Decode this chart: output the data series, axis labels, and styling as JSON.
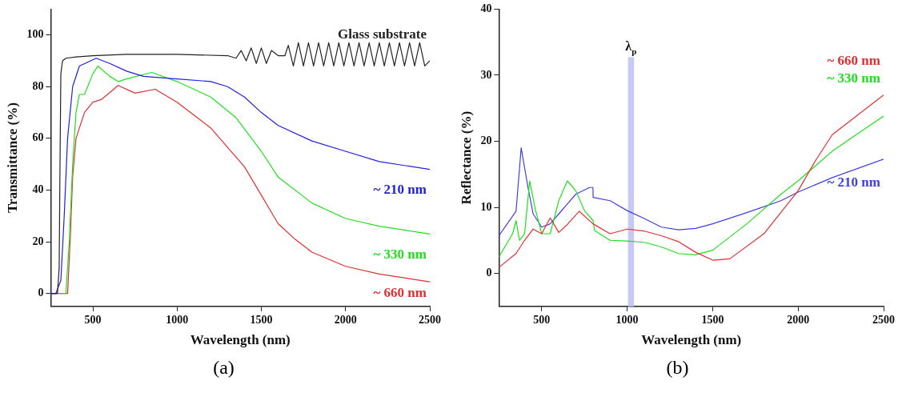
{
  "chart_data": [
    {
      "type": "line",
      "xlabel": "Wavelength (nm)",
      "ylabel": "Transmittance (%)",
      "xlim": [
        250,
        2500
      ],
      "ylim": [
        -5,
        110
      ],
      "xticks": [
        500,
        1000,
        1500,
        2000,
        2500
      ],
      "yticks": [
        0,
        20,
        40,
        60,
        80,
        100
      ],
      "grid": false,
      "legend": false,
      "marker": "none",
      "line_style": "solid",
      "annotations": [
        "(a)"
      ],
      "series": [
        {
          "name": "Glass substrate",
          "color": "#222222",
          "x": [
            250,
            290,
            300,
            305,
            310,
            320,
            340,
            400,
            500,
            700,
            1000,
            1300,
            1350,
            1380,
            1410,
            1440,
            1470,
            1500,
            1530,
            1560,
            1600,
            1640,
            1660,
            1690,
            1720,
            1750,
            1780,
            1810,
            1840,
            1870,
            1900,
            1930,
            1960,
            1990,
            2020,
            2050,
            2080,
            2110,
            2140,
            2170,
            2200,
            2230,
            2260,
            2290,
            2320,
            2350,
            2380,
            2410,
            2440,
            2470,
            2500
          ],
          "values": [
            0,
            0,
            10,
            50,
            85,
            90,
            91,
            91.5,
            92,
            92.5,
            92.5,
            92,
            91,
            94,
            90,
            95,
            89,
            95,
            89,
            94,
            92,
            92,
            96,
            88,
            97,
            88,
            97,
            88,
            97,
            88,
            97,
            88,
            97,
            88,
            97,
            88,
            97,
            88,
            97,
            88,
            97,
            88,
            97,
            88,
            97,
            88,
            97,
            88,
            97,
            88,
            90
          ]
        },
        {
          "name": "~ 210 nm",
          "color": "#2020e0",
          "x": [
            250,
            280,
            310,
            330,
            350,
            380,
            420,
            520,
            600,
            700,
            800,
            1000,
            1200,
            1300,
            1400,
            1500,
            1600,
            1800,
            2000,
            2200,
            2500
          ],
          "values": [
            0,
            0,
            5,
            30,
            60,
            80,
            88,
            91,
            89,
            86,
            84,
            83,
            82,
            80,
            76,
            70,
            65,
            59,
            55,
            51,
            48
          ]
        },
        {
          "name": "~ 330 nm",
          "color": "#20e020",
          "x": [
            250,
            340,
            360,
            380,
            400,
            420,
            450,
            500,
            530,
            600,
            650,
            700,
            850,
            1000,
            1200,
            1350,
            1500,
            1600,
            1800,
            2000,
            2200,
            2500
          ],
          "values": [
            0,
            0,
            20,
            50,
            70,
            77,
            77,
            85,
            88,
            84,
            82,
            83,
            85.5,
            82,
            76,
            68,
            55,
            45,
            35,
            29,
            26,
            23
          ]
        },
        {
          "name": "~ 660 nm",
          "color": "#e03030",
          "x": [
            250,
            350,
            365,
            380,
            400,
            450,
            500,
            550,
            650,
            750,
            870,
            1000,
            1200,
            1400,
            1500,
            1600,
            1700,
            1800,
            2000,
            2200,
            2500
          ],
          "values": [
            0,
            0,
            20,
            45,
            60,
            70,
            74,
            75,
            80.5,
            77.5,
            79,
            74,
            64,
            49,
            38,
            27,
            21,
            16,
            10.5,
            7.5,
            4.5
          ]
        }
      ]
    },
    {
      "type": "line",
      "xlabel": "Wavelength (nm)",
      "ylabel": "Reflectance (%)",
      "xlim": [
        250,
        2500
      ],
      "ylim": [
        -5,
        40
      ],
      "xticks": [
        500,
        1000,
        1500,
        2000,
        2500
      ],
      "yticks": [
        0,
        10,
        20,
        30,
        40
      ],
      "grid": false,
      "legend": false,
      "marker": "none",
      "line_style": "solid",
      "annotations": [
        "(b)"
      ],
      "bands": [
        {
          "axis": "x",
          "from": 1005,
          "to": 1040,
          "label": "λ$_{p}$",
          "color": "#c8c8f4"
        }
      ],
      "series": [
        {
          "name": "~ 660 nm",
          "color": "#e03030",
          "x": [
            250,
            350,
            400,
            450,
            500,
            550,
            600,
            650,
            720,
            800,
            900,
            1000,
            1100,
            1200,
            1300,
            1400,
            1500,
            1600,
            1800,
            2000,
            2100,
            2200,
            2500
          ],
          "values": [
            0.9,
            3,
            5,
            6.7,
            6,
            8.4,
            6.2,
            7.4,
            9.4,
            7.5,
            6,
            6.7,
            6.4,
            5.7,
            4.8,
            3.2,
            2,
            2.2,
            6,
            12.5,
            17,
            21,
            27
          ]
        },
        {
          "name": "~ 330 nm",
          "color": "#20e020",
          "x": [
            250,
            330,
            350,
            370,
            400,
            430,
            460,
            500,
            550,
            600,
            650,
            700,
            750,
            800,
            810,
            900,
            1000,
            1100,
            1200,
            1300,
            1400,
            1500,
            1700,
            1900,
            2000,
            2200,
            2500
          ],
          "values": [
            2.5,
            6,
            8,
            5,
            6,
            14,
            10,
            6,
            6,
            11,
            14,
            12.5,
            9.5,
            8,
            6.5,
            5,
            4.9,
            4.7,
            4,
            3,
            2.8,
            3.5,
            7.5,
            12,
            14,
            18.5,
            23.8
          ]
        },
        {
          "name": "~ 210 nm",
          "color": "#4040e0",
          "x": [
            250,
            350,
            380,
            420,
            450,
            500,
            550,
            600,
            700,
            780,
            800,
            801,
            900,
            1000,
            1100,
            1200,
            1300,
            1400,
            1500,
            1700,
            1900,
            2000,
            2200,
            2500
          ],
          "values": [
            5.7,
            9.4,
            19,
            13,
            9,
            7,
            7.5,
            9,
            12,
            13,
            13,
            11.5,
            11,
            9.5,
            8.3,
            7,
            6.6,
            6.8,
            7.5,
            9.2,
            11,
            12.3,
            14.5,
            17.3
          ]
        }
      ]
    }
  ]
}
